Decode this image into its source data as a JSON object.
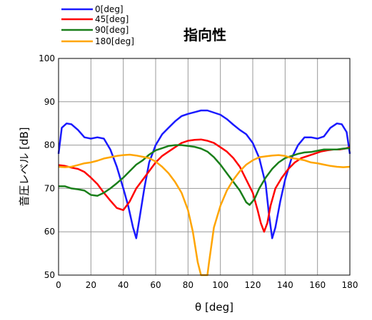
{
  "chart_data": {
    "type": "line",
    "title": "指向性",
    "xlabel": "θ [deg]",
    "ylabel": "音圧レベル [dB]",
    "xlim": [
      0,
      180
    ],
    "ylim": [
      50,
      100
    ],
    "x_ticks": [
      "0",
      "20",
      "40",
      "60",
      "80",
      "100",
      "120",
      "140",
      "160",
      "180"
    ],
    "y_ticks": [
      "50",
      "60",
      "70",
      "80",
      "90",
      "100"
    ],
    "grid": true,
    "legend_position": "top-left, outside plot",
    "series": [
      {
        "name": "0[deg]",
        "color": "#1a1aff",
        "points": [
          [
            0,
            78
          ],
          [
            2,
            84
          ],
          [
            5,
            85
          ],
          [
            8,
            84.8
          ],
          [
            12,
            83.5
          ],
          [
            16,
            81.8
          ],
          [
            20,
            81.5
          ],
          [
            24,
            81.8
          ],
          [
            28,
            81.5
          ],
          [
            32,
            79
          ],
          [
            36,
            75
          ],
          [
            40,
            70
          ],
          [
            43,
            66
          ],
          [
            46,
            61
          ],
          [
            48,
            58.5
          ],
          [
            50,
            63
          ],
          [
            53,
            70
          ],
          [
            56,
            76
          ],
          [
            60,
            80
          ],
          [
            64,
            82.5
          ],
          [
            68,
            84
          ],
          [
            72,
            85.5
          ],
          [
            76,
            86.7
          ],
          [
            80,
            87.2
          ],
          [
            84,
            87.6
          ],
          [
            88,
            88
          ],
          [
            92,
            88
          ],
          [
            96,
            87.5
          ],
          [
            100,
            87
          ],
          [
            104,
            86
          ],
          [
            108,
            84.7
          ],
          [
            112,
            83.5
          ],
          [
            116,
            82.5
          ],
          [
            120,
            80.5
          ],
          [
            124,
            77
          ],
          [
            128,
            71
          ],
          [
            130,
            64
          ],
          [
            132,
            58.5
          ],
          [
            134,
            61
          ],
          [
            137,
            67
          ],
          [
            140,
            72
          ],
          [
            144,
            77
          ],
          [
            148,
            80
          ],
          [
            152,
            81.8
          ],
          [
            156,
            81.8
          ],
          [
            160,
            81.5
          ],
          [
            164,
            82
          ],
          [
            168,
            84
          ],
          [
            172,
            85
          ],
          [
            175,
            84.8
          ],
          [
            178,
            83
          ],
          [
            180,
            78
          ]
        ]
      },
      {
        "name": "45[deg]",
        "color": "#ff0000",
        "points": [
          [
            0,
            75.4
          ],
          [
            4,
            75.2
          ],
          [
            8,
            74.8
          ],
          [
            12,
            74.5
          ],
          [
            16,
            73.8
          ],
          [
            20,
            72.5
          ],
          [
            24,
            71
          ],
          [
            28,
            69
          ],
          [
            32,
            67.2
          ],
          [
            36,
            65.5
          ],
          [
            40,
            65
          ],
          [
            44,
            67
          ],
          [
            48,
            70
          ],
          [
            52,
            72
          ],
          [
            56,
            74
          ],
          [
            60,
            76
          ],
          [
            64,
            77.5
          ],
          [
            68,
            78.5
          ],
          [
            72,
            79.5
          ],
          [
            76,
            80.5
          ],
          [
            80,
            81
          ],
          [
            84,
            81.2
          ],
          [
            88,
            81.3
          ],
          [
            92,
            81
          ],
          [
            96,
            80.5
          ],
          [
            100,
            79.5
          ],
          [
            104,
            78.5
          ],
          [
            108,
            77
          ],
          [
            112,
            75
          ],
          [
            116,
            72
          ],
          [
            120,
            69
          ],
          [
            123,
            65
          ],
          [
            125,
            62
          ],
          [
            127,
            60
          ],
          [
            129,
            62
          ],
          [
            131,
            66
          ],
          [
            134,
            70
          ],
          [
            138,
            72.5
          ],
          [
            142,
            74.5
          ],
          [
            146,
            76
          ],
          [
            150,
            77
          ],
          [
            154,
            77.5
          ],
          [
            158,
            78
          ],
          [
            162,
            78.5
          ],
          [
            166,
            78.8
          ],
          [
            170,
            79
          ],
          [
            174,
            79
          ],
          [
            177,
            79.2
          ],
          [
            180,
            79.5
          ]
        ]
      },
      {
        "name": "90[deg]",
        "color": "#1a7f1a",
        "points": [
          [
            0,
            70.5
          ],
          [
            4,
            70.5
          ],
          [
            8,
            70
          ],
          [
            12,
            69.8
          ],
          [
            16,
            69.5
          ],
          [
            20,
            68.5
          ],
          [
            24,
            68.3
          ],
          [
            28,
            69
          ],
          [
            32,
            70
          ],
          [
            36,
            71.2
          ],
          [
            40,
            72.5
          ],
          [
            44,
            74
          ],
          [
            48,
            75.5
          ],
          [
            52,
            76.5
          ],
          [
            56,
            77.8
          ],
          [
            60,
            78.8
          ],
          [
            64,
            79.3
          ],
          [
            68,
            79.8
          ],
          [
            72,
            80
          ],
          [
            76,
            80
          ],
          [
            80,
            79.8
          ],
          [
            84,
            79.6
          ],
          [
            88,
            79.2
          ],
          [
            92,
            78.5
          ],
          [
            96,
            77.2
          ],
          [
            100,
            75.5
          ],
          [
            104,
            73.5
          ],
          [
            108,
            71.5
          ],
          [
            112,
            69.5
          ],
          [
            116,
            66.8
          ],
          [
            118,
            66.2
          ],
          [
            121,
            67.5
          ],
          [
            124,
            70
          ],
          [
            128,
            72.5
          ],
          [
            132,
            74.5
          ],
          [
            136,
            76
          ],
          [
            140,
            77
          ],
          [
            144,
            77.5
          ],
          [
            148,
            78
          ],
          [
            152,
            78.3
          ],
          [
            156,
            78.4
          ],
          [
            160,
            78.7
          ],
          [
            164,
            79
          ],
          [
            168,
            79
          ],
          [
            172,
            79
          ],
          [
            176,
            79.2
          ],
          [
            180,
            79.3
          ]
        ]
      },
      {
        "name": "180[deg]",
        "color": "#ffa500",
        "points": [
          [
            0,
            75
          ],
          [
            4,
            74.9
          ],
          [
            8,
            75
          ],
          [
            12,
            75.4
          ],
          [
            16,
            75.8
          ],
          [
            20,
            76
          ],
          [
            24,
            76.4
          ],
          [
            28,
            76.9
          ],
          [
            32,
            77.2
          ],
          [
            36,
            77.5
          ],
          [
            40,
            77.7
          ],
          [
            44,
            77.8
          ],
          [
            48,
            77.6
          ],
          [
            52,
            77.3
          ],
          [
            56,
            77
          ],
          [
            60,
            76.2
          ],
          [
            64,
            75
          ],
          [
            68,
            73.5
          ],
          [
            72,
            71.5
          ],
          [
            76,
            69
          ],
          [
            80,
            65
          ],
          [
            83,
            60
          ],
          [
            86,
            53
          ],
          [
            88,
            50
          ],
          [
            90,
            50
          ],
          [
            92,
            50
          ],
          [
            93,
            53
          ],
          [
            96,
            61
          ],
          [
            100,
            66
          ],
          [
            104,
            69.5
          ],
          [
            108,
            72
          ],
          [
            112,
            74
          ],
          [
            116,
            75.5
          ],
          [
            120,
            76.5
          ],
          [
            124,
            77.2
          ],
          [
            128,
            77.4
          ],
          [
            132,
            77.6
          ],
          [
            136,
            77.7
          ],
          [
            140,
            77.5
          ],
          [
            144,
            77
          ],
          [
            148,
            76.8
          ],
          [
            152,
            76.5
          ],
          [
            156,
            76
          ],
          [
            160,
            75.8
          ],
          [
            164,
            75.5
          ],
          [
            168,
            75.2
          ],
          [
            172,
            75
          ],
          [
            176,
            74.9
          ],
          [
            180,
            75
          ]
        ]
      }
    ]
  }
}
